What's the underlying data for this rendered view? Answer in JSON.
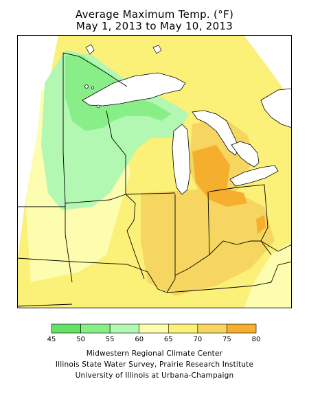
{
  "title": {
    "line1": "Average Maximum Temp. (°F)",
    "line2": "May 1, 2013 to May 10, 2013"
  },
  "legend": {
    "ticks": [
      "45",
      "50",
      "55",
      "60",
      "65",
      "70",
      "75",
      "80"
    ],
    "bins": [
      {
        "from": 45,
        "to": 50,
        "color": "#66e066"
      },
      {
        "from": 50,
        "to": 55,
        "color": "#88ef88"
      },
      {
        "from": 55,
        "to": 60,
        "color": "#b2f7b2"
      },
      {
        "from": 60,
        "to": 65,
        "color": "#fdfdb0"
      },
      {
        "from": 65,
        "to": 70,
        "color": "#fbf078"
      },
      {
        "from": 70,
        "to": 75,
        "color": "#f6d660"
      },
      {
        "from": 75,
        "to": 80,
        "color": "#f5ae2e"
      }
    ]
  },
  "colors": {
    "background": "#ffffff",
    "border": "#000000",
    "water": "#ffffff"
  },
  "credits": {
    "line1": "Midwestern Regional Climate Center",
    "line2": "Illinois State Water Survey, Prairie Research Institute",
    "line3": "University of Illinois at Urbana-Champaign"
  }
}
